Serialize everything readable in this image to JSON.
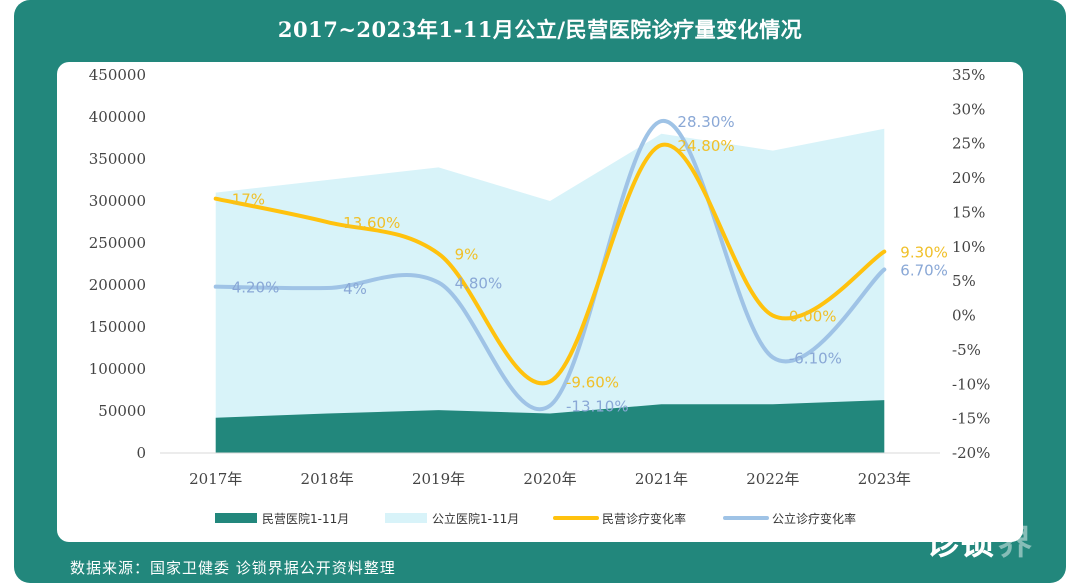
{
  "title": "2017~2023年1-11月公立/民营医院诊疗量变化情况",
  "source": "数据来源：国家卫健委 诊锁界据公开资料整理",
  "logo_text": "诊锁界",
  "colors": {
    "frame": "#22877c",
    "private_area": "#22877c",
    "public_area": "#d8f3f9",
    "private_rate": "#ffc20e",
    "public_rate": "#9fc3e6"
  },
  "chart_data": {
    "type": "area+line",
    "title": "2017~2023年1-11月公立/民营医院诊疗量变化情况",
    "categories": [
      "2017年",
      "2018年",
      "2019年",
      "2020年",
      "2021年",
      "2022年",
      "2023年"
    ],
    "y_left": {
      "ylim": [
        0,
        450000
      ],
      "ticks": [
        "450000",
        "400000",
        "350000",
        "300000",
        "250000",
        "200000",
        "150000",
        "100000",
        "50000",
        "0"
      ]
    },
    "y_right": {
      "ylim": [
        -20,
        35
      ],
      "ticks": [
        "35%",
        "30%",
        "25%",
        "20%",
        "15%",
        "10%",
        "5%",
        "0%",
        "-5%",
        "-10%",
        "-15%",
        "-20%"
      ]
    },
    "series": [
      {
        "name": "民营医院1-11月",
        "type": "area",
        "axis": "left",
        "values": [
          42000,
          47000,
          51000,
          47000,
          58000,
          58000,
          63000
        ]
      },
      {
        "name": "公立医院1-11月",
        "type": "area",
        "axis": "left",
        "values": [
          310000,
          325000,
          340000,
          300000,
          380000,
          360000,
          386000
        ]
      },
      {
        "name": "民营诊疗变化率",
        "type": "line",
        "axis": "right",
        "values": [
          17,
          13.6,
          9,
          -9.6,
          24.8,
          0.0,
          9.3
        ],
        "labels": [
          "17%",
          "13.60%",
          "9%",
          "-9.60%",
          "24.80%",
          "0.00%",
          "9.30%"
        ]
      },
      {
        "name": "公立诊疗变化率",
        "type": "line",
        "axis": "right",
        "values": [
          4.2,
          4,
          4.8,
          -13.1,
          28.3,
          -6.1,
          6.7
        ],
        "labels": [
          "4.20%",
          "4%",
          "4.80%",
          "-13.10%",
          "28.30%",
          "-6.10%",
          "6.70%"
        ]
      }
    ],
    "legend_position": "bottom"
  }
}
